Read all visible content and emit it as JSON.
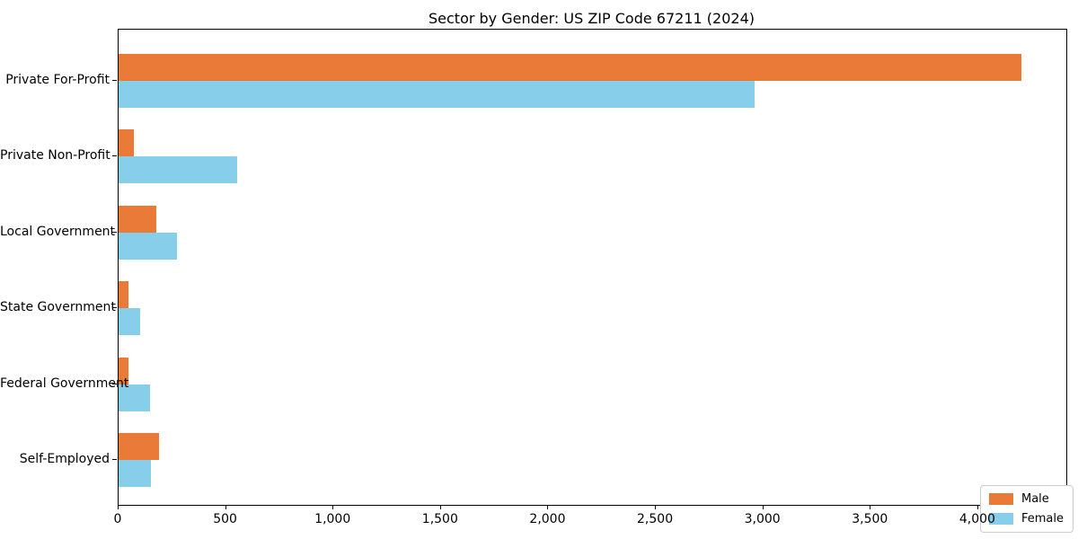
{
  "chart_data": {
    "type": "bar",
    "orientation": "horizontal",
    "title": "Sector by Gender: US ZIP Code 67211 (2024)",
    "xlabel": "",
    "ylabel": "",
    "categories": [
      "Private For-Profit",
      "Private Non-Profit",
      "Local Government",
      "State Government",
      "Federal Government",
      "Self-Employed"
    ],
    "series": [
      {
        "name": "Male",
        "color": "#E97A38",
        "values": [
          4200,
          70,
          175,
          45,
          45,
          190
        ]
      },
      {
        "name": "Female",
        "color": "#87CEEB",
        "values": [
          2960,
          550,
          270,
          100,
          145,
          150
        ]
      }
    ],
    "xlim": [
      0,
      4410
    ],
    "xticks": [
      0,
      500,
      1000,
      1500,
      2000,
      2500,
      3000,
      3500,
      4000
    ],
    "xtick_labels": [
      "0",
      "500",
      "1,000",
      "1,500",
      "2,000",
      "2,500",
      "3,000",
      "3,500",
      "4,000"
    ],
    "grid": false,
    "legend": {
      "position": "lower right",
      "items": [
        {
          "label": "Male",
          "color": "#E97A38"
        },
        {
          "label": "Female",
          "color": "#87CEEB"
        }
      ]
    }
  },
  "colors": {
    "male": "#E97A38",
    "female": "#87CEEB",
    "axis": "#000000",
    "background": "#FFFFFF",
    "legend_border": "#CCCCCC"
  }
}
